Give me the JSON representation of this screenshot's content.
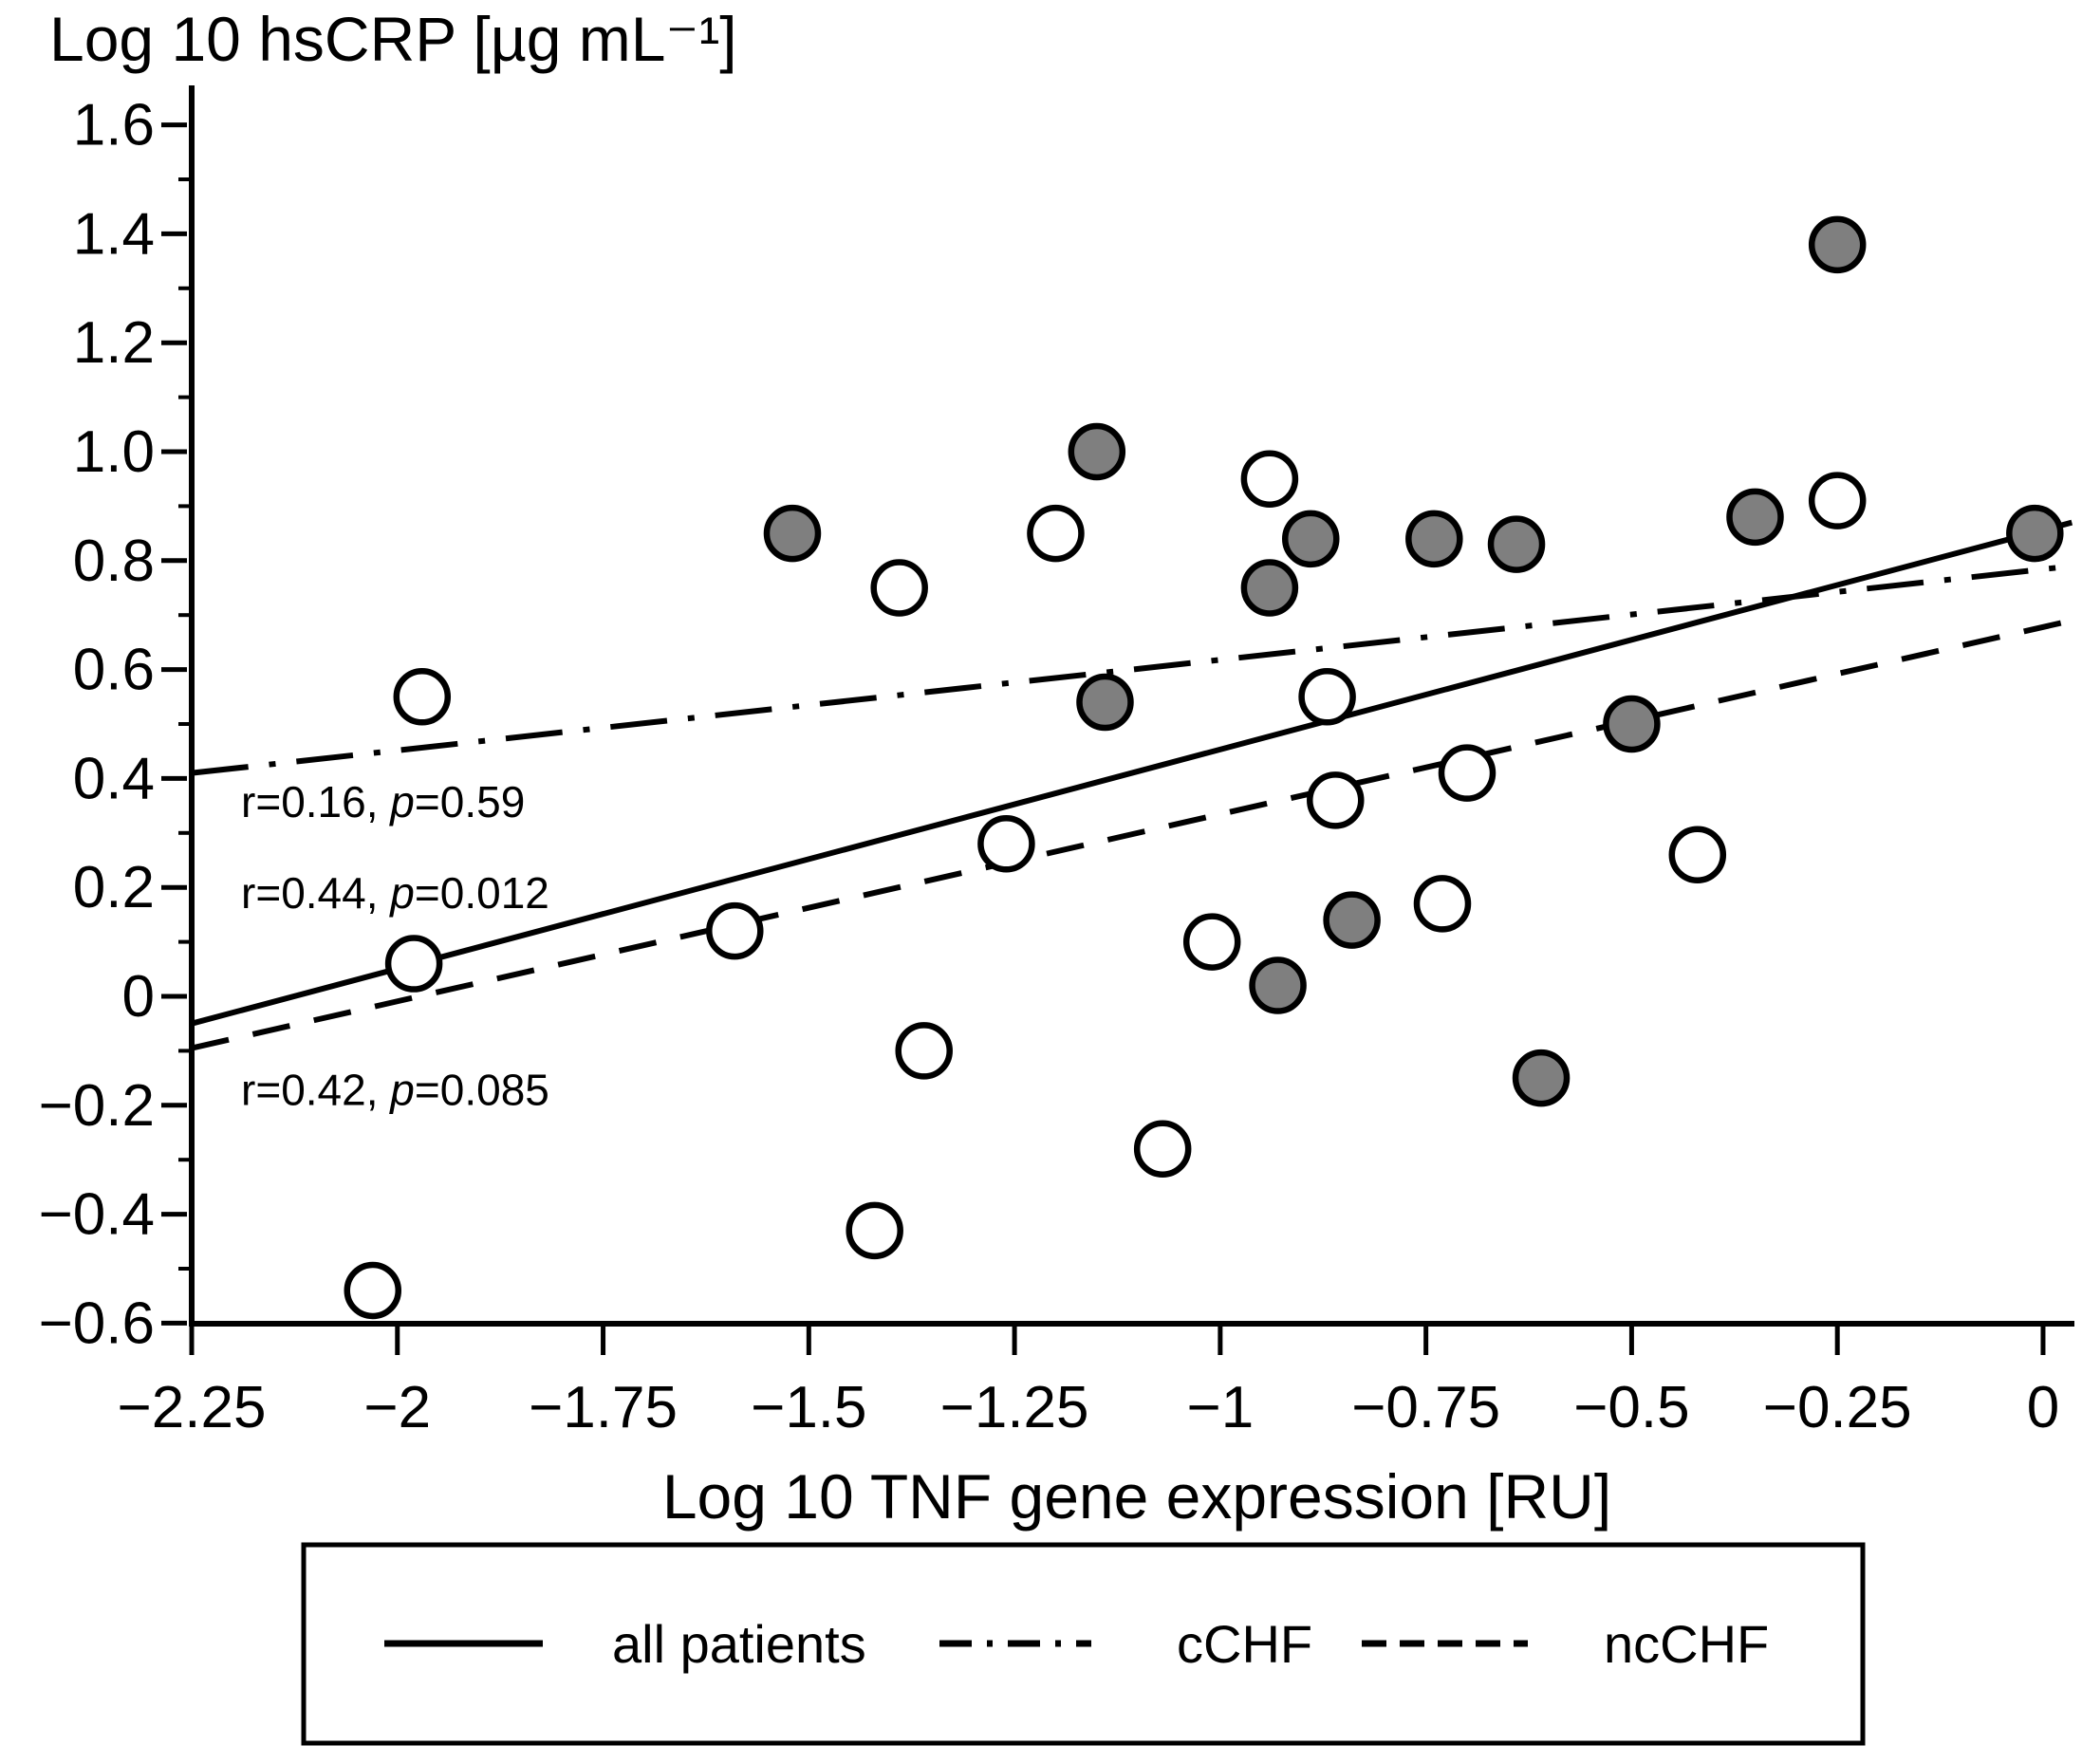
{
  "chart_data": {
    "type": "scatter",
    "title": "",
    "y_axis": {
      "label": "Log 10 hsCRP [µg mL⁻¹]",
      "min": -0.6,
      "max": 1.6,
      "tick_values": [
        1.6,
        1.4,
        1.2,
        1.0,
        0.8,
        0.6,
        0.4,
        0.2,
        0,
        -0.2,
        -0.4,
        -0.6
      ],
      "tick_labels": [
        "1.6",
        "1.4",
        "1.2",
        "1.0",
        "0.8",
        "0.6",
        "0.4",
        "0.2",
        "0",
        "−0.2",
        "−0.4",
        "−0.6"
      ],
      "minor_tick_values": [
        1.5,
        1.3,
        1.1,
        0.9,
        0.7,
        0.5,
        0.3,
        0.1,
        -0.1,
        -0.3,
        -0.5
      ]
    },
    "x_axis": {
      "label": "Log 10 TNF gene expression [RU]",
      "min": -2.25,
      "max": 0,
      "tick_values": [
        -2.25,
        -2,
        -1.75,
        -1.5,
        -1.25,
        -1,
        -0.75,
        -0.5,
        -0.25,
        0
      ],
      "tick_labels": [
        "−2.25",
        "−2",
        "−1.75",
        "−1.5",
        "−1.25",
        "−1",
        "−0.75",
        "−0.5",
        "−0.25",
        "0"
      ]
    },
    "grid": "off",
    "series": [
      {
        "name": "cCHF",
        "marker": "filled-circle",
        "fill": "#7f7f7f",
        "points": [
          [
            -1.52,
            0.85
          ],
          [
            -1.15,
            1.0
          ],
          [
            -1.14,
            0.54
          ],
          [
            -0.94,
            0.75
          ],
          [
            -0.93,
            0.02
          ],
          [
            -0.89,
            0.84
          ],
          [
            -0.84,
            0.14
          ],
          [
            -0.74,
            0.84
          ],
          [
            -0.64,
            0.83
          ],
          [
            -0.61,
            -0.15
          ],
          [
            -0.5,
            0.5
          ],
          [
            -0.35,
            0.88
          ],
          [
            -0.25,
            1.38
          ],
          [
            -0.01,
            0.85
          ]
        ]
      },
      {
        "name": "ncCHF",
        "marker": "open-circle",
        "fill": "#ffffff",
        "points": [
          [
            -2.03,
            -0.54
          ],
          [
            -1.98,
            0.06
          ],
          [
            -1.97,
            0.55
          ],
          [
            -1.59,
            0.12
          ],
          [
            -1.42,
            -0.43
          ],
          [
            -1.39,
            0.75
          ],
          [
            -1.36,
            -0.1
          ],
          [
            -1.26,
            0.28
          ],
          [
            -1.2,
            0.85
          ],
          [
            -1.07,
            -0.28
          ],
          [
            -1.01,
            0.1
          ],
          [
            -0.94,
            0.95
          ],
          [
            -0.87,
            0.55
          ],
          [
            -0.86,
            0.36
          ],
          [
            -0.73,
            0.17
          ],
          [
            -0.7,
            0.41
          ],
          [
            -0.42,
            0.26
          ],
          [
            -0.25,
            0.91
          ]
        ]
      }
    ],
    "regression_lines": [
      {
        "name": "all patients",
        "style": "solid",
        "x1": -2.25,
        "y1": -0.05,
        "x2": 0.035,
        "y2": 0.87,
        "r": "0.44",
        "p": "0.012"
      },
      {
        "name": "cCHF",
        "style": "dashdot",
        "x1": -2.25,
        "y1": 0.41,
        "x2": 0.035,
        "y2": 0.79,
        "r": "0.16",
        "p": "0.59"
      },
      {
        "name": "ncCHF",
        "style": "dashed",
        "x1": -2.25,
        "y1": -0.095,
        "x2": 0.035,
        "y2": 0.69,
        "r": "0.42",
        "p": "0.085"
      }
    ],
    "annotations": [
      {
        "text": "r=0.16, p=0.59",
        "x": -2.19,
        "y": 0.357
      },
      {
        "text": "r=0.44, p=0.012",
        "x": -2.19,
        "y": 0.19
      },
      {
        "text": "r=0.42, p=0.085",
        "x": -2.19,
        "y": -0.172
      }
    ],
    "legend": {
      "position": "bottom",
      "items": [
        {
          "label": "all patients",
          "style": "solid"
        },
        {
          "label": "cCHF",
          "style": "dashdot"
        },
        {
          "label": "ncCHF",
          "style": "dashed"
        }
      ]
    },
    "colors": {
      "point_fill_cchf": "#7f7f7f",
      "point_fill_ncchf": "#ffffff",
      "stroke": "#000000",
      "background": "#ffffff"
    }
  }
}
